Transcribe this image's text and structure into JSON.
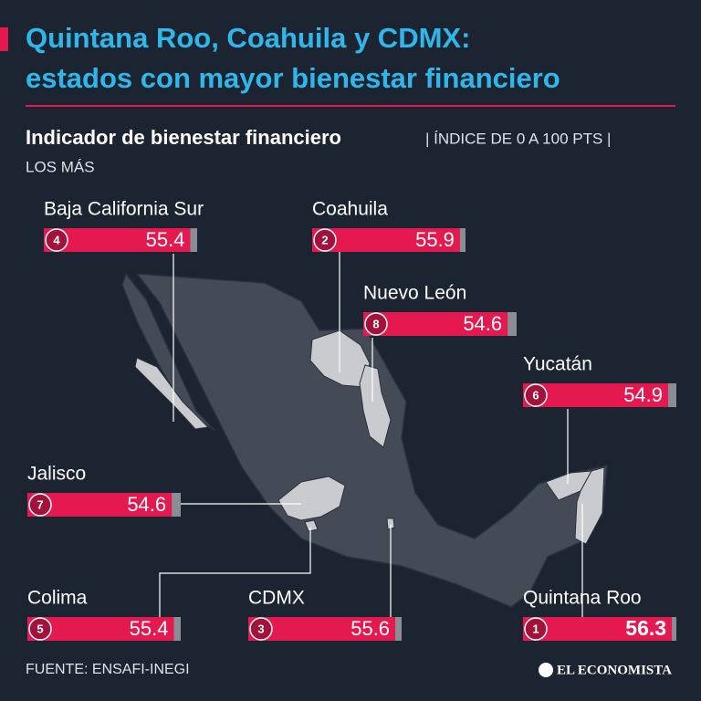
{
  "chart_data": {
    "type": "bar",
    "title_lines": [
      "Quintana Roo, Coahuila y CDMX:",
      "estados con mayor bienestar financiero"
    ],
    "subtitle": "Indicador de bienestar financiero",
    "subtitle_unit": "| ÍNDICE DE 0 A 100 PTS |",
    "subtitle_note": "LOS MÁS",
    "categories": [
      "Baja California Sur",
      "Coahuila",
      "Nuevo León",
      "Yucatán",
      "Jalisco",
      "Colima",
      "CDMX",
      "Quintana Roo"
    ],
    "ranks": [
      "4",
      "2",
      "8",
      "6",
      "7",
      "5",
      "3",
      "1"
    ],
    "values": [
      55.4,
      55.9,
      54.6,
      54.9,
      54.6,
      55.4,
      55.6,
      56.3
    ],
    "xlim": [
      0,
      58
    ],
    "color": "#e3194f",
    "track_color": "#8a8d93",
    "source": "FUENTE: ENSAFI-INEGI",
    "brand": "EL ECONOMISTA"
  }
}
